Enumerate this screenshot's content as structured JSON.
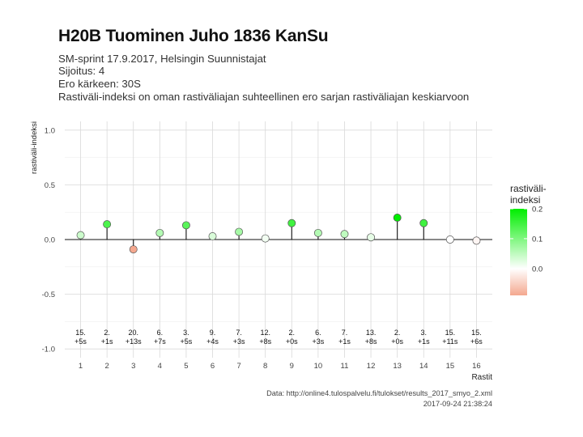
{
  "title": "H20B Tuominen Juho 1836 KanSu",
  "subtitle_lines": [
    "SM-sprint 17.9.2017, Helsingin Suunnistajat",
    "Sijoitus: 4",
    "Ero kärkeen: 30S",
    "Rastiväli-indeksi on oman rastiväliajan suhteellinen ero sarjan rastiväliajan keskiarvoon"
  ],
  "caption": {
    "source": "Data: http://online4.tulospalvelu.fi/tulokset/results_2017_smyo_2.xml",
    "timestamp": "2017-09-24 21:38:24"
  },
  "legend": {
    "title_line1": "rastiväli-",
    "title_line2": "indeksi",
    "ticks": [
      "0.2",
      "0.1",
      "0.0"
    ],
    "colors": {
      "high": "#00ee00",
      "mid": "#ffffff",
      "low": "#f4a88f"
    }
  },
  "chart_data": {
    "type": "lollipop",
    "xlabel": "Rastit",
    "ylabel": "rastiväli-indeksi",
    "ylim": [
      -1.0,
      1.0
    ],
    "y_ticks": [
      "1.0",
      "0.5",
      "0.0",
      "-0.5",
      "-1.0"
    ],
    "x": [
      1,
      2,
      3,
      4,
      5,
      6,
      7,
      8,
      9,
      10,
      11,
      12,
      13,
      14,
      15,
      16
    ],
    "values": [
      0.04,
      0.14,
      -0.09,
      0.06,
      0.13,
      0.03,
      0.07,
      0.01,
      0.15,
      0.06,
      0.05,
      0.02,
      0.2,
      0.15,
      0.0,
      -0.01
    ],
    "labels_rank": [
      "15.",
      "2.",
      "20.",
      "6.",
      "3.",
      "9.",
      "7.",
      "12.",
      "2.",
      "6.",
      "7.",
      "13.",
      "2.",
      "3.",
      "15.",
      "15."
    ],
    "labels_diff": [
      "+5s",
      "+1s",
      "+13s",
      "+7s",
      "+5s",
      "+4s",
      "+3s",
      "+8s",
      "+0s",
      "+3s",
      "+1s",
      "+8s",
      "+0s",
      "+1s",
      "+11s",
      "+6s"
    ],
    "grid": true
  }
}
